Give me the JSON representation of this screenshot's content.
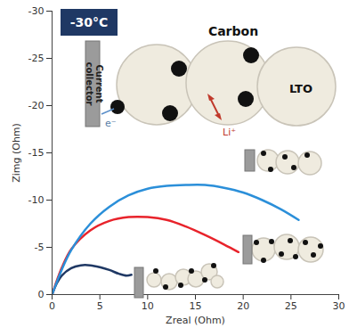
{
  "chart_data": {
    "type": "line",
    "title": "-30°C",
    "xlabel": "Zreal (Ohm)",
    "ylabel": "Zimg (Ohm)",
    "xlim": [
      0,
      30
    ],
    "xticks": [
      0,
      5,
      10,
      15,
      20,
      25,
      30
    ],
    "ylim": [
      0,
      -30
    ],
    "yticks": [
      0,
      -5,
      -10,
      -15,
      -20,
      -25,
      -30
    ],
    "grid": false,
    "annotations": [
      "Carbon",
      "LTO",
      "Current collector",
      "e⁻",
      "Li⁺"
    ],
    "series": [
      {
        "color": "#1f3864",
        "x": [
          0,
          0.5,
          1,
          2,
          3,
          4,
          5,
          6,
          7,
          7.8,
          8.3
        ],
        "values": [
          0,
          -1.2,
          -2,
          -2.8,
          -3.1,
          -3.1,
          -2.9,
          -2.6,
          -2.2,
          -2.0,
          -2.1
        ]
      },
      {
        "color": "#e8232b",
        "x": [
          0,
          1,
          2,
          4,
          6,
          8,
          10,
          12,
          14,
          16,
          18,
          19.5
        ],
        "values": [
          0,
          -2.8,
          -4.8,
          -6.8,
          -7.8,
          -8.2,
          -8.2,
          -7.9,
          -7.2,
          -6.3,
          -5.3,
          -4.5
        ]
      },
      {
        "color": "#2b8fd9",
        "x": [
          0,
          1,
          2,
          4,
          6,
          8,
          10,
          12,
          14,
          16,
          18,
          20,
          22,
          24,
          25.8
        ],
        "values": [
          0,
          -2.6,
          -4.7,
          -7.5,
          -9.3,
          -10.5,
          -11.2,
          -11.5,
          -11.6,
          -11.6,
          -11.3,
          -10.8,
          -10,
          -9,
          -7.9
        ]
      }
    ]
  }
}
